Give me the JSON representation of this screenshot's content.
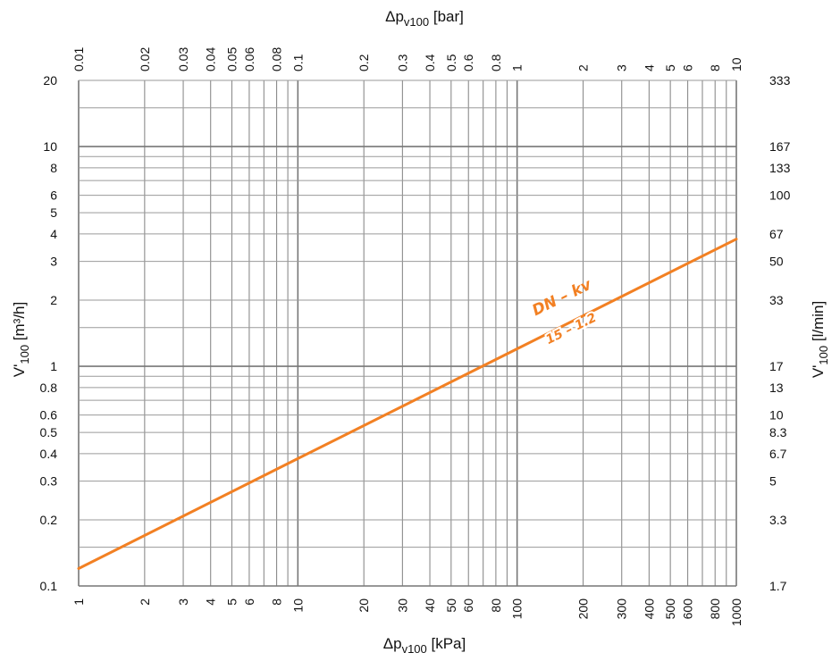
{
  "chart_data": {
    "type": "line",
    "scale": {
      "x": "log",
      "y": "log"
    },
    "grid": true,
    "x_kpa": {
      "label_main": "Δp",
      "label_sub": "v100",
      "label_unit": " [kPa]",
      "range": [
        1,
        1000
      ],
      "ticks": [
        {
          "v": 1,
          "t": "1"
        },
        {
          "v": 2,
          "t": "2"
        },
        {
          "v": 3,
          "t": "3"
        },
        {
          "v": 4,
          "t": "4"
        },
        {
          "v": 5,
          "t": "5"
        },
        {
          "v": 6,
          "t": "6"
        },
        {
          "v": 8,
          "t": "8"
        },
        {
          "v": 10,
          "t": "10"
        },
        {
          "v": 20,
          "t": "20"
        },
        {
          "v": 30,
          "t": "30"
        },
        {
          "v": 40,
          "t": "40"
        },
        {
          "v": 50,
          "t": "50"
        },
        {
          "v": 60,
          "t": "60"
        },
        {
          "v": 80,
          "t": "80"
        },
        {
          "v": 100,
          "t": "100"
        },
        {
          "v": 200,
          "t": "200"
        },
        {
          "v": 300,
          "t": "300"
        },
        {
          "v": 400,
          "t": "400"
        },
        {
          "v": 500,
          "t": "500"
        },
        {
          "v": 600,
          "t": "600"
        },
        {
          "v": 800,
          "t": "800"
        },
        {
          "v": 1000,
          "t": "1000"
        }
      ]
    },
    "x_bar": {
      "label_main": "Δp",
      "label_sub": "v100",
      "label_unit": " [bar]",
      "range": [
        0.01,
        10
      ],
      "ticks": [
        {
          "v": 0.01,
          "t": "0.01"
        },
        {
          "v": 0.02,
          "t": "0.02"
        },
        {
          "v": 0.03,
          "t": "0.03"
        },
        {
          "v": 0.04,
          "t": "0.04"
        },
        {
          "v": 0.05,
          "t": "0.05"
        },
        {
          "v": 0.06,
          "t": "0.06"
        },
        {
          "v": 0.08,
          "t": "0.08"
        },
        {
          "v": 0.1,
          "t": "0.1"
        },
        {
          "v": 0.2,
          "t": "0.2"
        },
        {
          "v": 0.3,
          "t": "0.3"
        },
        {
          "v": 0.4,
          "t": "0.4"
        },
        {
          "v": 0.5,
          "t": "0.5"
        },
        {
          "v": 0.6,
          "t": "0.6"
        },
        {
          "v": 0.8,
          "t": "0.8"
        },
        {
          "v": 1,
          "t": "1"
        },
        {
          "v": 2,
          "t": "2"
        },
        {
          "v": 3,
          "t": "3"
        },
        {
          "v": 4,
          "t": "4"
        },
        {
          "v": 5,
          "t": "5"
        },
        {
          "v": 6,
          "t": "6"
        },
        {
          "v": 8,
          "t": "8"
        },
        {
          "v": 10,
          "t": "10"
        }
      ]
    },
    "y_m3h": {
      "label_main": "V'",
      "label_sub": "100",
      "label_unit": " [m³/h]",
      "range": [
        0.1,
        20
      ],
      "ticks": [
        {
          "v": 0.1,
          "t": "0.1"
        },
        {
          "v": 0.2,
          "t": "0.2"
        },
        {
          "v": 0.3,
          "t": "0.3"
        },
        {
          "v": 0.4,
          "t": "0.4"
        },
        {
          "v": 0.5,
          "t": "0.5"
        },
        {
          "v": 0.6,
          "t": "0.6"
        },
        {
          "v": 0.8,
          "t": "0.8"
        },
        {
          "v": 1,
          "t": "1"
        },
        {
          "v": 2,
          "t": "2"
        },
        {
          "v": 3,
          "t": "3"
        },
        {
          "v": 4,
          "t": "4"
        },
        {
          "v": 5,
          "t": "5"
        },
        {
          "v": 6,
          "t": "6"
        },
        {
          "v": 8,
          "t": "8"
        },
        {
          "v": 10,
          "t": "10"
        },
        {
          "v": 20,
          "t": "20"
        }
      ]
    },
    "y_lmin": {
      "label_main": "V'",
      "label_sub": "100",
      "label_unit": " [l/min]",
      "ticks": [
        {
          "at": 0.1,
          "t": "1.7"
        },
        {
          "at": 0.2,
          "t": "3.3"
        },
        {
          "at": 0.3,
          "t": "5"
        },
        {
          "at": 0.4,
          "t": "6.7"
        },
        {
          "at": 0.5,
          "t": "8.3"
        },
        {
          "at": 0.6,
          "t": "10"
        },
        {
          "at": 0.8,
          "t": "13"
        },
        {
          "at": 1,
          "t": "17"
        },
        {
          "at": 2,
          "t": "33"
        },
        {
          "at": 3,
          "t": "50"
        },
        {
          "at": 4,
          "t": "67"
        },
        {
          "at": 6,
          "t": "100"
        },
        {
          "at": 8,
          "t": "133"
        },
        {
          "at": 10,
          "t": "167"
        },
        {
          "at": 20,
          "t": "333"
        }
      ]
    },
    "grid_y_values": [
      0.1,
      0.15,
      0.2,
      0.3,
      0.4,
      0.5,
      0.6,
      0.7,
      0.8,
      0.9,
      1,
      1.5,
      2,
      3,
      4,
      5,
      6,
      7,
      8,
      9,
      10,
      15,
      20
    ],
    "series": [
      {
        "color": "#F28023",
        "x": [
          1,
          10,
          100,
          1000
        ],
        "y": [
          0.12,
          0.38,
          1.2,
          3.79
        ]
      }
    ],
    "annotation": {
      "line1": "DN – kv",
      "line2": "15 – 1.2",
      "color": "#F28023"
    }
  }
}
